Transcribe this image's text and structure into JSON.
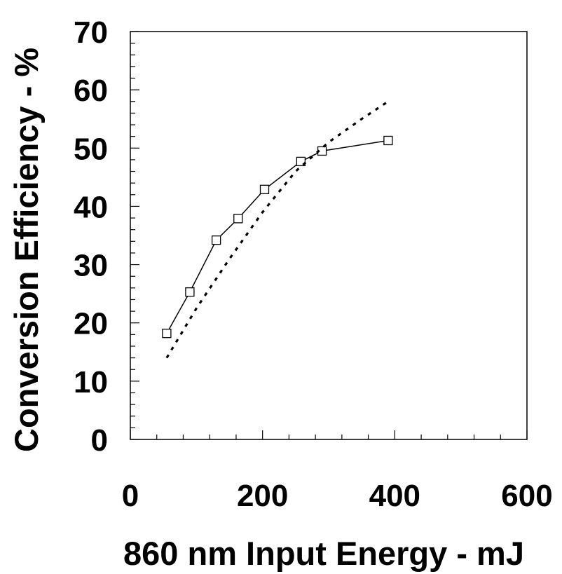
{
  "chart_data": {
    "type": "line",
    "title": "",
    "xlabel": "860 nm Input Energy - mJ",
    "ylabel": "Conversion Efficiency - %",
    "xlim": [
      0,
      600
    ],
    "ylim": [
      0,
      70
    ],
    "xticks": [
      0,
      200,
      400,
      600
    ],
    "yticks": [
      0,
      10,
      20,
      30,
      40,
      50,
      60,
      70
    ],
    "x_minor_step": 40,
    "y_minor_step": 2,
    "grid": false,
    "legend": "none",
    "series": [
      {
        "style": "solid",
        "marker": "open-square",
        "color": "#000000",
        "points": [
          [
            55,
            18.2
          ],
          [
            90,
            25.3
          ],
          [
            130,
            34.2
          ],
          [
            163,
            37.9
          ],
          [
            203,
            42.9
          ],
          [
            258,
            47.7
          ],
          [
            290,
            49.5
          ],
          [
            390,
            51.3
          ]
        ]
      },
      {
        "style": "dotted",
        "marker": "none",
        "color": "#000000",
        "points": [
          [
            55,
            14
          ],
          [
            100,
            22.5
          ],
          [
            150,
            31
          ],
          [
            200,
            39
          ],
          [
            250,
            46
          ],
          [
            300,
            51
          ],
          [
            350,
            55
          ],
          [
            390,
            58
          ]
        ]
      }
    ]
  }
}
